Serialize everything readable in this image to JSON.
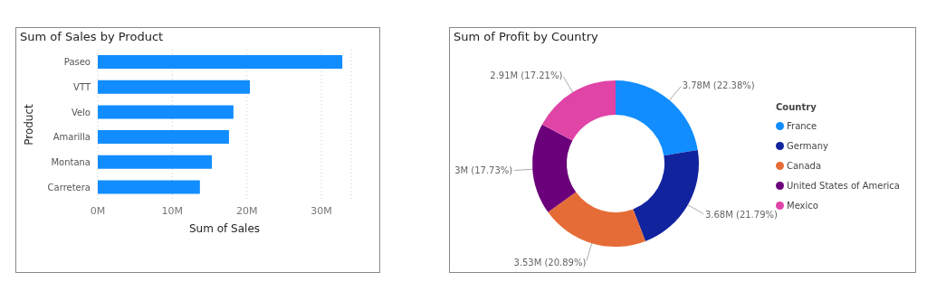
{
  "chart_data": [
    {
      "type": "bar",
      "orientation": "horizontal",
      "title": "Sum of Sales by Product",
      "xlabel": "Sum of Sales",
      "ylabel": "Product",
      "categories": [
        "Paseo",
        "VTT",
        "Velo",
        "Amarilla",
        "Montana",
        "Carretera"
      ],
      "values": [
        32.8,
        20.4,
        18.2,
        17.6,
        15.3,
        13.7
      ],
      "color": "#118dff",
      "xlim": [
        0,
        34
      ],
      "xticks": [
        {
          "value": 0,
          "label": "0M"
        },
        {
          "value": 10,
          "label": "10M"
        },
        {
          "value": 20,
          "label": "20M"
        },
        {
          "value": 30,
          "label": "30M"
        }
      ],
      "grid": "x"
    },
    {
      "type": "donut",
      "title": "Sum of Profit by Country",
      "legend_title": "Country",
      "legend": "right",
      "categories": [
        "France",
        "Germany",
        "Canada",
        "United States of America",
        "Mexico"
      ],
      "values": [
        22.38,
        21.79,
        20.89,
        17.73,
        17.21
      ],
      "colors": [
        "#118dff",
        "#12239e",
        "#e66c37",
        "#6b007b",
        "#e044a7"
      ],
      "value_labels": [
        "3.78M (22.38%)",
        "3.68M (21.79%)",
        "3.53M (20.89%)",
        "3M (17.73%)",
        "2.91M (17.21%)"
      ]
    }
  ]
}
